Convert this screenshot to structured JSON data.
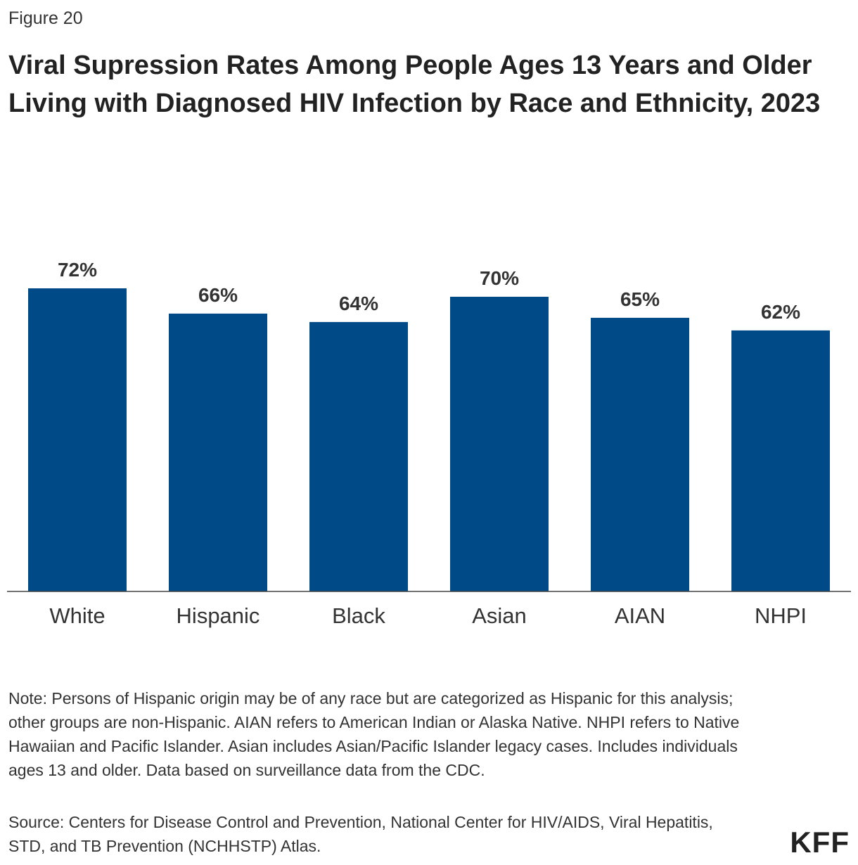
{
  "header": {
    "figure_label": "Figure 20",
    "title": "Viral Supression Rates Among People Ages 13 Years and Older Living with Diagnosed HIV Infection by Race and Ethnicity, 2023"
  },
  "chart_data": {
    "type": "bar",
    "title": "Viral Supression Rates Among People Ages 13 Years and Older Living with Diagnosed HIV Infection by Race and Ethnicity, 2023",
    "categories": [
      "White",
      "Hispanic",
      "Black",
      "Asian",
      "AIAN",
      "NHPI"
    ],
    "values": [
      72,
      66,
      64,
      70,
      65,
      62
    ],
    "data_labels": [
      "72%",
      "66%",
      "64%",
      "70%",
      "65%",
      "62%"
    ],
    "xlabel": "",
    "ylabel": "",
    "ylim": [
      0,
      72
    ],
    "grid": false,
    "bar_color": "#004a87"
  },
  "footer": {
    "note": "Note: Persons of Hispanic origin may be of any race but are categorized as Hispanic for this analysis; other groups are non-Hispanic. AIAN refers to American Indian or Alaska Native. NHPI refers to Native Hawaiian and Pacific Islander. Asian includes Asian/Pacific Islander legacy cases. Includes individuals ages 13 and older. Data based on surveillance data from the CDC.",
    "source": "Source: Centers for Disease Control and Prevention, National Center for HIV/AIDS, Viral Hepatitis, STD, and TB Prevention (NCHHSTP) Atlas.",
    "logo": "KFF"
  }
}
